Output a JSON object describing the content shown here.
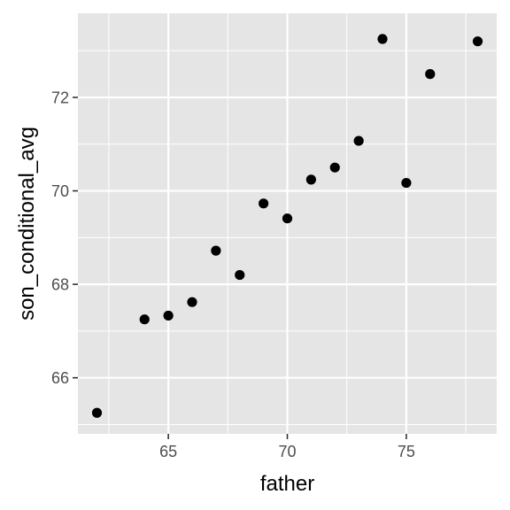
{
  "chart_data": {
    "type": "scatter",
    "title": "",
    "xlabel": "father",
    "ylabel": "son_conditional_avg",
    "xlim": [
      61.2,
      78.8
    ],
    "ylim": [
      64.8,
      73.8
    ],
    "x_ticks": [
      65,
      70,
      75
    ],
    "x_tick_labels": [
      "65",
      "70",
      "75"
    ],
    "x_minor_ticks": [
      62.5,
      67.5,
      72.5,
      77.5
    ],
    "y_ticks": [
      66,
      68,
      70,
      72
    ],
    "y_tick_labels": [
      "66",
      "68",
      "70",
      "72"
    ],
    "y_minor_ticks": [
      65,
      67,
      69,
      71,
      73
    ],
    "grid": true,
    "legend": "none",
    "colors": {
      "panel_background": "#e5e5e5",
      "grid": "#ffffff",
      "point": "#000000",
      "tick_label": "#4d4d4d",
      "tick_mark": "#333333",
      "axis_title": "#000000"
    },
    "points": [
      {
        "x": 62,
        "y": 65.25
      },
      {
        "x": 64,
        "y": 67.25
      },
      {
        "x": 65,
        "y": 67.33
      },
      {
        "x": 66,
        "y": 67.62
      },
      {
        "x": 67,
        "y": 68.72
      },
      {
        "x": 68,
        "y": 68.2
      },
      {
        "x": 69,
        "y": 69.73
      },
      {
        "x": 70,
        "y": 69.41
      },
      {
        "x": 71,
        "y": 70.24
      },
      {
        "x": 72,
        "y": 70.5
      },
      {
        "x": 73,
        "y": 71.07
      },
      {
        "x": 74,
        "y": 73.25
      },
      {
        "x": 75,
        "y": 70.17
      },
      {
        "x": 76,
        "y": 72.5
      },
      {
        "x": 78,
        "y": 73.2
      }
    ]
  }
}
